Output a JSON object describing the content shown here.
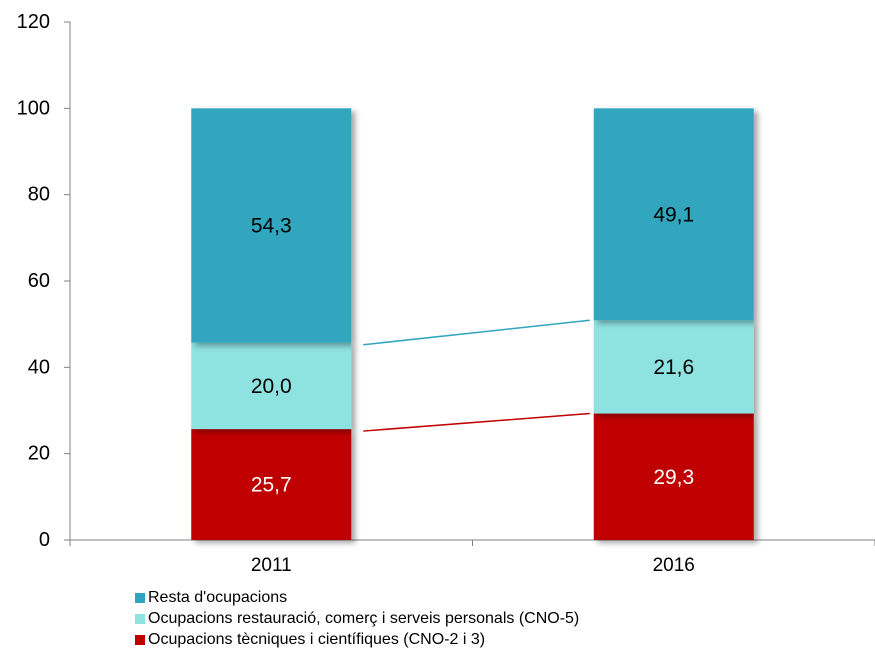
{
  "chart_data": {
    "type": "bar",
    "stacked": true,
    "categories": [
      "2011",
      "2016"
    ],
    "series": [
      {
        "name": "Ocupacions tècniques i científiques (CNO-2 i 3)",
        "values": [
          25.7,
          29.3
        ],
        "labels": [
          "25,7",
          "29,3"
        ],
        "color": "#c00000",
        "label_color": "#ffffff"
      },
      {
        "name": "Ocupacions restauració, comerç i serveis personals (CNO-5)",
        "values": [
          20.0,
          21.6
        ],
        "labels": [
          "20,0",
          "21,6"
        ],
        "color": "#8ee2e0",
        "label_color": "#000000"
      },
      {
        "name": "Resta d'ocupacions",
        "values": [
          54.3,
          49.1
        ],
        "labels": [
          "54,3",
          "49,1"
        ],
        "color": "#31a5bf",
        "label_color": "#000000"
      }
    ],
    "yticks": [
      0,
      20,
      40,
      60,
      80,
      100,
      120
    ],
    "ylim": [
      0,
      120
    ],
    "title": "",
    "xlabel": "",
    "ylabel": "",
    "grid": false,
    "connector_lines": [
      {
        "series": "Ocupacions tècniques i científiques (CNO-2 i 3)",
        "color": "#c00000"
      },
      {
        "series": "Ocupacions restauració, comerç i serveis personals (CNO-5)",
        "color": "#31a5bf"
      }
    ],
    "legend": {
      "position": "bottom-left",
      "items": [
        "Resta d'ocupacions",
        "Ocupacions restauració, comerç i serveis personals (CNO-5)",
        "Ocupacions tècniques i científiques (CNO-2 i 3)"
      ]
    }
  }
}
